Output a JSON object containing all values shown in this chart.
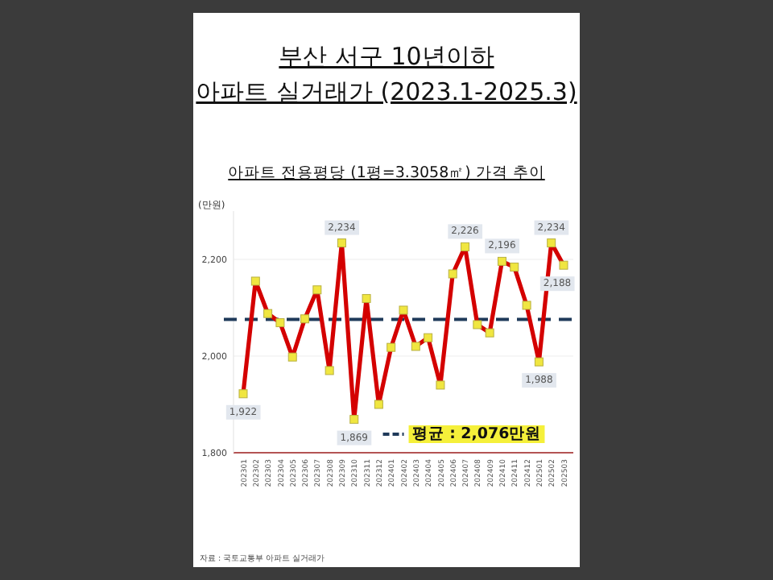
{
  "chart_data": {
    "type": "line",
    "title": "부산 서구 10년이하\n아파트 실거래가 (2023.1-2025.3)",
    "subtitle": "아파트 전용평당 (1평=3.3058㎡) 가격 추이",
    "ylabel": "(만원)",
    "categories": [
      "202301",
      "202302",
      "202303",
      "202304",
      "202305",
      "202306",
      "202307",
      "202308",
      "202309",
      "202310",
      "202311",
      "202312",
      "202401",
      "202402",
      "202403",
      "202404",
      "202405",
      "202406",
      "202407",
      "202408",
      "202409",
      "202410",
      "202411",
      "202412",
      "202501",
      "202502",
      "202503"
    ],
    "series": [
      {
        "color": "#d40000",
        "values": [
          1922,
          2155,
          2088,
          2069,
          1998,
          2077,
          2137,
          1970,
          2234,
          1869,
          2119,
          1900,
          2018,
          2095,
          2020,
          2038,
          1940,
          2170,
          2226,
          2065,
          2048,
          2196,
          2184,
          2105,
          1988,
          2234,
          2188
        ],
        "value_labels": [
          "1,922",
          null,
          null,
          null,
          null,
          null,
          null,
          null,
          "2,234",
          "1,869",
          null,
          null,
          null,
          null,
          null,
          null,
          null,
          null,
          "2,226",
          null,
          null,
          "2,196",
          null,
          null,
          "1,988",
          "2,234",
          "2,188"
        ]
      }
    ],
    "marker": "square",
    "line_style": "solid",
    "grid": "y",
    "ylim": [
      1800,
      2300
    ],
    "yticks": [
      {
        "value": 1800,
        "label": "1,800"
      },
      {
        "value": 2000,
        "label": "2,000"
      },
      {
        "value": 2200,
        "label": "2,200"
      }
    ],
    "ref_lines": [
      {
        "axis": "y",
        "value": 2076,
        "label": "평균 : 2,076만원",
        "color": "#1f3a5a",
        "line_style": "dashed"
      }
    ],
    "annotations": [
      "자료 : 국토교통부 아파트 실거래가"
    ]
  }
}
